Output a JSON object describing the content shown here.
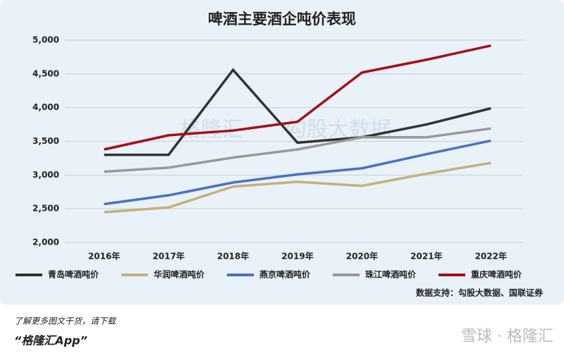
{
  "chart_data": {
    "type": "line",
    "title": "啤酒主要酒企吨价表现",
    "categories": [
      "2016年",
      "2017年",
      "2018年",
      "2019年",
      "2020年",
      "2021年",
      "2022年"
    ],
    "series": [
      {
        "name": "青岛啤酒吨价",
        "color": "#333333",
        "values": [
          3300,
          3300,
          4560,
          3480,
          3560,
          3750,
          3990
        ]
      },
      {
        "name": "华润啤酒吨价",
        "color": "#c5b07a",
        "values": [
          2450,
          2520,
          2830,
          2900,
          2840,
          3020,
          3180
        ]
      },
      {
        "name": "燕京啤酒吨价",
        "color": "#4a72c4",
        "values": [
          2570,
          2700,
          2890,
          3010,
          3100,
          3310,
          3510
        ]
      },
      {
        "name": "珠江啤酒吨价",
        "color": "#999999",
        "values": [
          3050,
          3110,
          3260,
          3380,
          3560,
          3560,
          3690
        ]
      },
      {
        "name": "重庆啤酒吨价",
        "color": "#a50f15",
        "values": [
          3380,
          3590,
          3660,
          3790,
          4520,
          4710,
          4920
        ]
      }
    ],
    "ylim": [
      2000,
      5000
    ],
    "yticks": [
      {
        "value": 2000,
        "label": "2,000"
      },
      {
        "value": 2500,
        "label": "2,500"
      },
      {
        "value": 3000,
        "label": "3,000"
      },
      {
        "value": 3500,
        "label": "3,500"
      },
      {
        "value": 4000,
        "label": "4,000"
      },
      {
        "value": 4500,
        "label": "4,500"
      },
      {
        "value": 5000,
        "label": "5,000"
      }
    ],
    "grid": true,
    "source": "数据支持：勾股大数据、国联证券",
    "watermarks": [
      "格隆汇",
      "勾股大数据"
    ]
  },
  "footer": {
    "line1": "了解更多图文干货，请下载",
    "line2": "“格隆汇App”",
    "brand": "雪球 · 格隆汇"
  }
}
